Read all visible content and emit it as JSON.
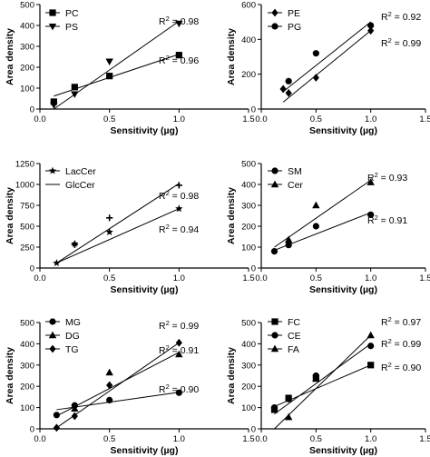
{
  "chart_data": [
    {
      "type": "scatter",
      "xlabel": "Sensitivity (µg)",
      "ylabel": "Area density",
      "xlim": [
        0.0,
        1.5
      ],
      "ylim": [
        0,
        500
      ],
      "xticks": [
        "0.0",
        "0.5",
        "1.0",
        "1.5"
      ],
      "yticks": [
        "0",
        "100",
        "200",
        "300",
        "400",
        "500"
      ],
      "legend_position": "top-left",
      "series": [
        {
          "name": "PC",
          "marker": "square",
          "x": [
            0.1,
            0.25,
            0.5,
            1.0
          ],
          "y": [
            35,
            105,
            158,
            258
          ],
          "fit": [
            [
              0.1,
              62
            ],
            [
              1.0,
              262
            ]
          ],
          "r2_label": "R",
          "r2_sup": "2",
          "r2_value": " = 0.96"
        },
        {
          "name": "PS",
          "marker": "triangle-down",
          "x": [
            0.1,
            0.25,
            0.5,
            1.0
          ],
          "y": [
            20,
            72,
            228,
            410
          ],
          "fit": [
            [
              0.1,
              0
            ],
            [
              1.0,
              420
            ]
          ],
          "r2_label": "R",
          "r2_sup": "2",
          "r2_value": " = 0.98"
        }
      ]
    },
    {
      "type": "scatter",
      "xlabel": "Sensitivity (µg)",
      "ylabel": "Area density",
      "xlim": [
        0.0,
        1.5
      ],
      "ylim": [
        0,
        600
      ],
      "xticks": [
        "0.0",
        "0.5",
        "1.0",
        "1.5"
      ],
      "yticks": [
        "0",
        "200",
        "400",
        "600"
      ],
      "legend_position": "top-left",
      "series": [
        {
          "name": "PE",
          "marker": "diamond",
          "x": [
            0.2,
            0.25,
            0.5,
            1.0
          ],
          "y": [
            115,
            92,
            180,
            450
          ],
          "fit": [
            [
              0.2,
              40
            ],
            [
              1.0,
              450
            ]
          ],
          "r2_label": "R",
          "r2_sup": "2",
          "r2_value": " = 0.92"
        },
        {
          "name": "PG",
          "marker": "circle",
          "x": [
            0.25,
            0.5,
            1.0
          ],
          "y": [
            160,
            320,
            480
          ],
          "fit": [
            [
              0.2,
              100
            ],
            [
              1.0,
              500
            ]
          ],
          "r2_label": "R",
          "r2_sup": "2",
          "r2_value": " = 0.99"
        }
      ]
    },
    {
      "type": "scatter",
      "xlabel": "Sensitivity (µg)",
      "ylabel": "Area density",
      "xlim": [
        0.0,
        1.5
      ],
      "ylim": [
        0,
        1250
      ],
      "xticks": [
        "0.0",
        "0.5",
        "1.0",
        "1.5"
      ],
      "yticks": [
        "0",
        "250",
        "500",
        "750",
        "1000",
        "1250"
      ],
      "legend_position": "top-left",
      "series": [
        {
          "name": "LacCer",
          "marker": "star",
          "x": [
            0.12,
            0.25,
            0.5,
            1.0
          ],
          "y": [
            60,
            290,
            430,
            710
          ],
          "fit": [
            [
              0.12,
              60
            ],
            [
              1.0,
              710
            ]
          ],
          "r2_label": "R",
          "r2_sup": "2",
          "r2_value": " = 0.94"
        },
        {
          "name": "GlcCer",
          "marker": "plus",
          "x": [
            0.25,
            0.5,
            1.0
          ],
          "y": [
            280,
            600,
            990
          ],
          "fit": [
            [
              0.12,
              60
            ],
            [
              1.0,
              1010
            ]
          ],
          "r2_label": "R",
          "r2_sup": "2",
          "r2_value": " = 0.98"
        }
      ]
    },
    {
      "type": "scatter",
      "xlabel": "Sensitivity (µg)",
      "ylabel": "Area density",
      "xlim": [
        0.0,
        1.5
      ],
      "ylim": [
        0,
        500
      ],
      "xticks": [
        "0.0",
        "0.5",
        "1.0",
        "1.5"
      ],
      "yticks": [
        "0",
        "100",
        "200",
        "300",
        "400",
        "500"
      ],
      "legend_position": "top-left",
      "series": [
        {
          "name": "SM",
          "marker": "circle",
          "x": [
            0.12,
            0.25,
            0.5,
            1.0
          ],
          "y": [
            80,
            110,
            200,
            255
          ],
          "fit": [
            [
              0.12,
              85
            ],
            [
              1.0,
              265
            ]
          ],
          "r2_label": "R",
          "r2_sup": "2",
          "r2_value": " = 0.91"
        },
        {
          "name": "Cer",
          "marker": "triangle-up",
          "x": [
            0.25,
            0.5,
            1.0
          ],
          "y": [
            135,
            300,
            410
          ],
          "fit": [
            [
              0.12,
              100
            ],
            [
              1.0,
              420
            ]
          ],
          "r2_label": "R",
          "r2_sup": "2",
          "r2_value": " = 0.93"
        }
      ]
    },
    {
      "type": "scatter",
      "xlabel": "Sensitivity (µg)",
      "ylabel": "Area density",
      "xlim": [
        0.0,
        1.5
      ],
      "ylim": [
        0,
        500
      ],
      "xticks": [
        "0.0",
        "0.5",
        "1.0",
        "1.5"
      ],
      "yticks": [
        "0",
        "100",
        "200",
        "300",
        "400",
        "500"
      ],
      "legend_position": "top-left",
      "series": [
        {
          "name": "MG",
          "marker": "circle",
          "x": [
            0.12,
            0.25,
            0.5,
            1.0
          ],
          "y": [
            65,
            110,
            135,
            170
          ],
          "fit": [
            [
              0.12,
              90
            ],
            [
              1.0,
              172
            ]
          ],
          "r2_label": "R",
          "r2_sup": "2",
          "r2_value": " = 0.90"
        },
        {
          "name": "DG",
          "marker": "triangle-up",
          "x": [
            0.25,
            0.5,
            1.0
          ],
          "y": [
            95,
            265,
            350
          ],
          "fit": [
            [
              0.12,
              60
            ],
            [
              1.0,
              360
            ]
          ],
          "r2_label": "R",
          "r2_sup": "2",
          "r2_value": " = 0.91"
        },
        {
          "name": "TG",
          "marker": "diamond",
          "x": [
            0.12,
            0.25,
            0.5,
            1.0
          ],
          "y": [
            5,
            60,
            205,
            405
          ],
          "fit": [
            [
              0.12,
              5
            ],
            [
              1.0,
              405
            ]
          ],
          "r2_label": "R",
          "r2_sup": "2",
          "r2_value": " = 0.99"
        }
      ]
    },
    {
      "type": "scatter",
      "xlabel": "Sensitivity (µg)",
      "ylabel": "Area density",
      "xlim": [
        0.0,
        1.5
      ],
      "ylim": [
        0,
        500
      ],
      "xticks": [
        "0.0",
        "0.5",
        "1.0",
        "1.5"
      ],
      "yticks": [
        "0",
        "100",
        "200",
        "300",
        "400",
        "500"
      ],
      "legend_position": "top-left",
      "series": [
        {
          "name": "FC",
          "marker": "square",
          "x": [
            0.12,
            0.25,
            0.5,
            1.0
          ],
          "y": [
            90,
            145,
            240,
            300
          ],
          "fit": [
            [
              0.12,
              105
            ],
            [
              1.0,
              300
            ]
          ],
          "r2_label": "R",
          "r2_sup": "2",
          "r2_value": " = 0.90"
        },
        {
          "name": "CE",
          "marker": "circle",
          "x": [
            0.12,
            0.25,
            0.5,
            1.0
          ],
          "y": [
            100,
            140,
            250,
            390
          ],
          "fit": [
            [
              0.12,
              70
            ],
            [
              1.0,
              400
            ]
          ],
          "r2_label": "R",
          "r2_sup": "2",
          "r2_value": " = 0.99"
        },
        {
          "name": "FA",
          "marker": "triangle-up",
          "x": [
            0.25,
            0.5,
            1.0
          ],
          "y": [
            55,
            235,
            440
          ],
          "fit": [
            [
              0.12,
              0
            ],
            [
              1.0,
              440
            ]
          ],
          "r2_label": "R",
          "r2_sup": "2",
          "r2_value": " = 0.97"
        }
      ]
    }
  ]
}
